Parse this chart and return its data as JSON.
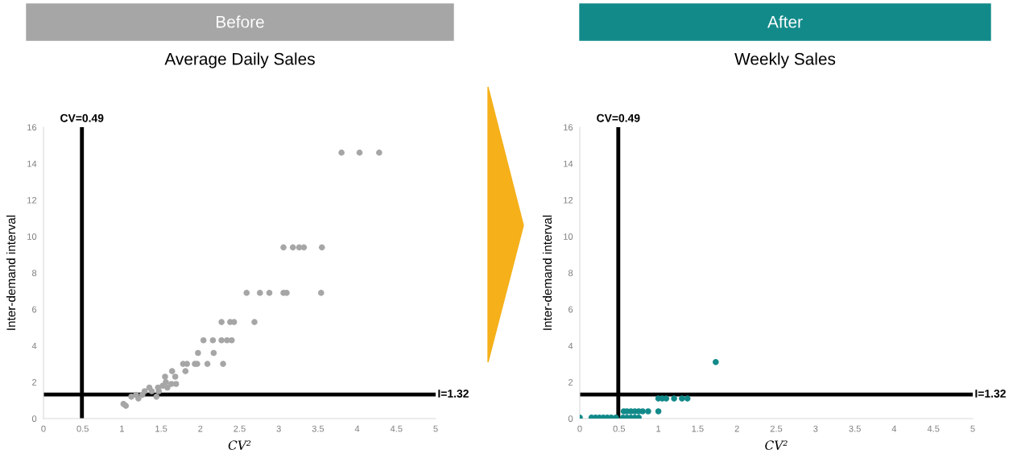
{
  "chart_data": [
    {
      "type": "scatter",
      "title": "Before",
      "subtitle": "Average Daily Sales",
      "xlabel": "CV²",
      "ylabel": "Inter-demand interval",
      "xlim": [
        0,
        5
      ],
      "ylim": [
        0,
        16
      ],
      "xticks": [
        0,
        0.5,
        1,
        1.5,
        2,
        2.5,
        3,
        3.5,
        4,
        4.5,
        5
      ],
      "yticks": [
        0,
        2,
        4,
        6,
        8,
        10,
        12,
        14,
        16
      ],
      "grid": false,
      "marker": "circle",
      "series": [
        {
          "color": "#a6a6a6",
          "x": [
            1.02,
            1.05,
            1.12,
            1.18,
            1.21,
            1.26,
            1.29,
            1.35,
            1.38,
            1.44,
            1.46,
            1.47,
            1.52,
            1.55,
            1.56,
            1.58,
            1.63,
            1.64,
            1.68,
            1.69,
            1.81,
            1.78,
            1.83,
            1.93,
            1.96,
            2.09,
            2.29,
            1.97,
            2.17,
            2.04,
            2.16,
            2.27,
            2.34,
            2.4,
            2.27,
            2.38,
            2.43,
            2.69,
            2.59,
            2.76,
            2.88,
            3.06,
            3.1,
            3.54,
            3.06,
            3.18,
            3.26,
            3.32,
            3.55,
            3.8,
            4.03,
            4.28
          ],
          "values": [
            0.8,
            0.7,
            1.2,
            1.3,
            1.1,
            1.3,
            1.5,
            1.7,
            1.5,
            1.2,
            1.7,
            1.5,
            1.8,
            2.3,
            2.0,
            1.7,
            1.9,
            2.6,
            2.3,
            1.9,
            2.6,
            3.0,
            3.0,
            3.0,
            3.0,
            3.0,
            3.0,
            3.6,
            3.6,
            4.3,
            4.3,
            4.3,
            4.3,
            4.3,
            5.3,
            5.3,
            5.3,
            5.3,
            6.9,
            6.9,
            6.9,
            6.9,
            6.9,
            6.9,
            9.4,
            9.4,
            9.4,
            9.4,
            9.4,
            14.6,
            14.6,
            14.6
          ]
        }
      ],
      "ref_lines": [
        {
          "axis": "x",
          "value": 0.49,
          "label": "CV=0.49",
          "color": "#000000"
        },
        {
          "axis": "y",
          "value": 1.32,
          "label": "I=1.32",
          "color": "#000000"
        }
      ]
    },
    {
      "type": "scatter",
      "title": "After",
      "subtitle": "Weekly Sales",
      "xlabel": "CV²",
      "ylabel": "Inter-demand interval",
      "xlim": [
        0,
        5
      ],
      "ylim": [
        0,
        16
      ],
      "xticks": [
        0,
        0.5,
        1,
        1.5,
        2,
        2.5,
        3,
        3.5,
        4,
        4.5,
        5
      ],
      "yticks": [
        0,
        2,
        4,
        6,
        8,
        10,
        12,
        14,
        16
      ],
      "grid": false,
      "marker": "circle",
      "series": [
        {
          "color": "#138a8a",
          "x": [
            0,
            0.15,
            0.2,
            0.25,
            0.3,
            0.35,
            0.4,
            0.46,
            0.55,
            0.6,
            0.65,
            0.7,
            0.75,
            0.56,
            0.6,
            0.65,
            0.7,
            0.75,
            0.8,
            0.87,
            1.0,
            1.0,
            1.05,
            1.1,
            1.2,
            1.3,
            1.37,
            1.73
          ],
          "values": [
            0.05,
            0.05,
            0.05,
            0.05,
            0.05,
            0.05,
            0.05,
            0.05,
            0.05,
            0.05,
            0.05,
            0.05,
            0.05,
            0.4,
            0.4,
            0.4,
            0.4,
            0.4,
            0.4,
            0.4,
            0.4,
            1.1,
            1.1,
            1.1,
            1.1,
            1.1,
            1.1,
            3.1
          ]
        }
      ],
      "ref_lines": [
        {
          "axis": "x",
          "value": 0.49,
          "label": "CV=0.49",
          "color": "#000000"
        },
        {
          "axis": "y",
          "value": 1.32,
          "label": "I=1.32",
          "color": "#000000"
        }
      ]
    }
  ]
}
